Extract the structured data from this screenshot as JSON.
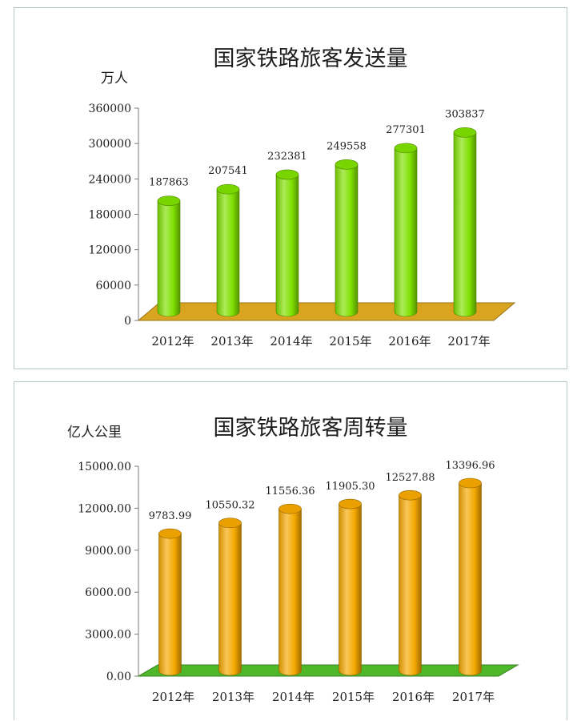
{
  "chart_data": [
    {
      "type": "bar",
      "title": "国家铁路旅客发送量",
      "ylabel": "万人",
      "xlabel": "",
      "categories": [
        "2012年",
        "2013年",
        "2014年",
        "2015年",
        "2016年",
        "2017年"
      ],
      "values": [
        187863,
        207541,
        232381,
        249558,
        277301,
        303837
      ],
      "value_labels": [
        "187863",
        "207541",
        "232381",
        "249558",
        "277301",
        "303837"
      ],
      "ylim": [
        0,
        360000
      ],
      "yticks": [
        0,
        60000,
        120000,
        180000,
        240000,
        300000,
        360000
      ],
      "ytick_labels": [
        "0",
        "60000",
        "120000",
        "180000",
        "240000",
        "300000",
        "360000"
      ],
      "grid": false,
      "legend": "none",
      "bar_style": "3d-cylinder",
      "bar_color": "#7fe000",
      "floor_color": "#d9a520"
    },
    {
      "type": "bar",
      "title": "国家铁路旅客周转量",
      "ylabel": "亿人公里",
      "xlabel": "",
      "categories": [
        "2012年",
        "2013年",
        "2014年",
        "2015年",
        "2016年",
        "2017年"
      ],
      "values": [
        9783.99,
        10550.32,
        11556.36,
        11905.3,
        12527.88,
        13396.96
      ],
      "value_labels": [
        "9783.99",
        "10550.32",
        "11556.36",
        "11905.30",
        "12527.88",
        "13396.96"
      ],
      "ylim": [
        0,
        15000
      ],
      "yticks": [
        0,
        3000,
        6000,
        9000,
        12000,
        15000
      ],
      "ytick_labels": [
        "0.00",
        "3000.00",
        "6000.00",
        "9000.00",
        "12000.00",
        "15000.00"
      ],
      "grid": false,
      "legend": "none",
      "bar_style": "3d-cylinder",
      "bar_color": "#f5a800",
      "floor_color": "#4fb82a"
    }
  ]
}
